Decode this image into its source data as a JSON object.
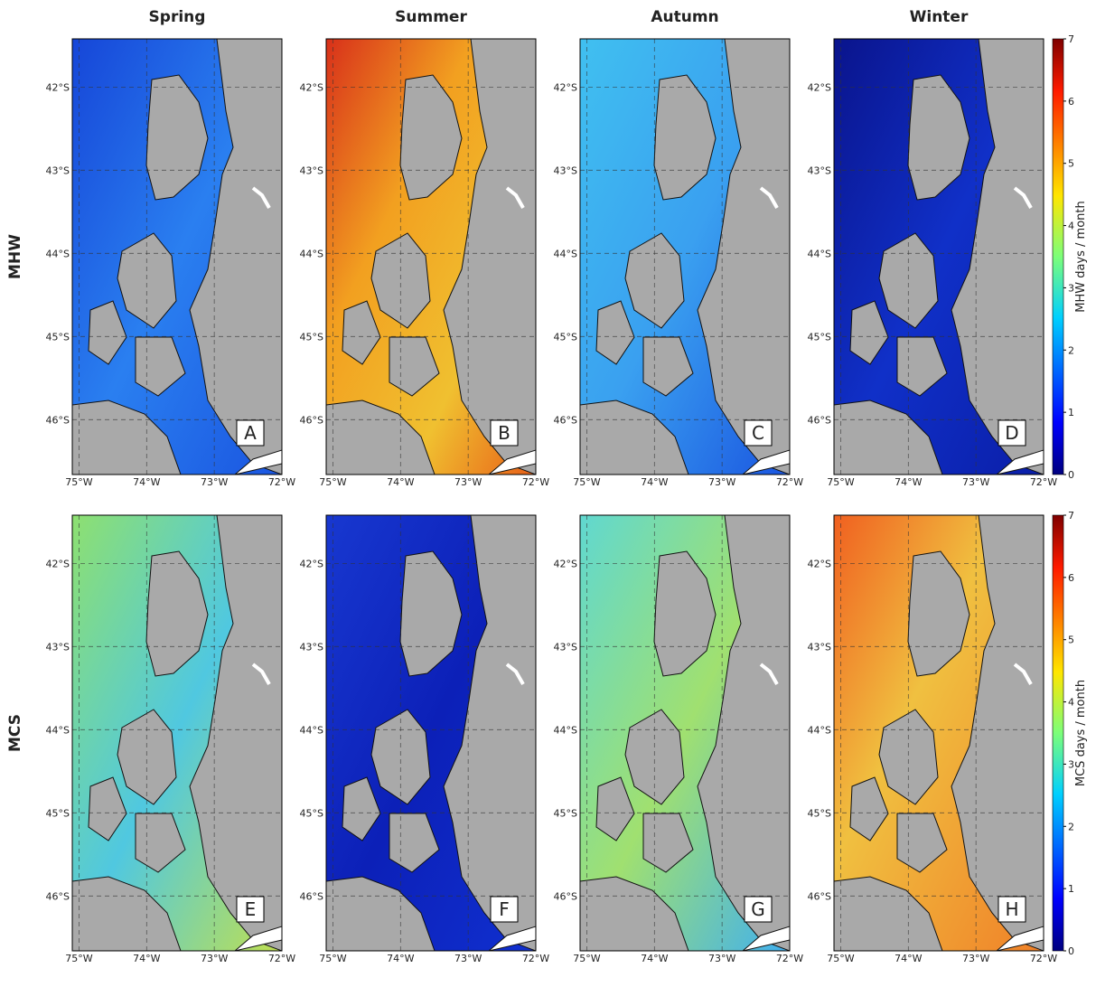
{
  "columns": [
    "Spring",
    "Summer",
    "Autumn",
    "Winter"
  ],
  "rows": [
    {
      "label": "MHW",
      "panels": [
        "A",
        "B",
        "C",
        "D"
      ],
      "colorbar": {
        "label": "MHW days / month",
        "clim": [
          0,
          7
        ],
        "ticks": [
          0,
          1,
          2,
          3,
          4,
          5,
          6,
          7
        ]
      }
    },
    {
      "label": "MCS",
      "panels": [
        "E",
        "F",
        "G",
        "H"
      ],
      "colorbar": {
        "label": "MCS days / month",
        "clim": [
          0,
          7
        ],
        "ticks": [
          0,
          1,
          2,
          3,
          4,
          5,
          6,
          7
        ]
      }
    }
  ],
  "map": {
    "lonlim": [
      -75.1,
      -72
    ],
    "latlim": [
      -46.66,
      -41.42
    ],
    "lon_ticks": [
      {
        "value": -75,
        "label": "75°W"
      },
      {
        "value": -74,
        "label": "74°W"
      },
      {
        "value": -73,
        "label": "73°W"
      },
      {
        "value": -72,
        "label": "72°W"
      }
    ],
    "lat_ticks": [
      {
        "value": -42,
        "label": "42°S"
      },
      {
        "value": -43,
        "label": "43°S"
      },
      {
        "value": -44,
        "label": "44°S"
      },
      {
        "value": -45,
        "label": "45°S"
      },
      {
        "value": -46,
        "label": "46°S"
      }
    ]
  }
}
